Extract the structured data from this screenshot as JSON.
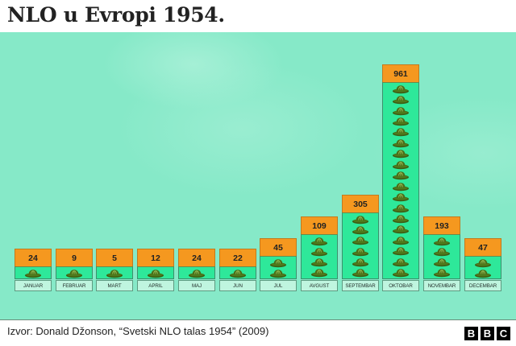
{
  "title": "NLO u Evropi 1954.",
  "footer": {
    "source": "Izvor: Donald Džonson, “Svetski NLO talas 1954” (2009)",
    "logo_letters": [
      "B",
      "B",
      "C"
    ]
  },
  "colors": {
    "background_green": "#86e9c8",
    "value_box": "#f5981f",
    "ufo_area": "#2ee89a",
    "label_box": "#bff5df",
    "ufo_dark": "#3d5d14",
    "ufo_light": "#7ea83a"
  },
  "chart_data": {
    "type": "bar",
    "title": "NLO u Evropi 1954.",
    "xlabel": "",
    "ylabel": "",
    "categories": [
      "Januar",
      "Februar",
      "Mart",
      "April",
      "Maj",
      "Jun",
      "Jul",
      "Avgust",
      "Septembar",
      "Oktobar",
      "Novembar",
      "Decembar"
    ],
    "values": [
      24,
      9,
      5,
      12,
      24,
      22,
      45,
      109,
      305,
      961,
      193,
      47
    ],
    "icon_counts": [
      1,
      1,
      1,
      1,
      1,
      1,
      2,
      4,
      6,
      18,
      4,
      2
    ],
    "grid": false,
    "legend": null,
    "source": "Izvor: Donald Džonson, “Svetski NLO talas 1954” (2009)"
  }
}
